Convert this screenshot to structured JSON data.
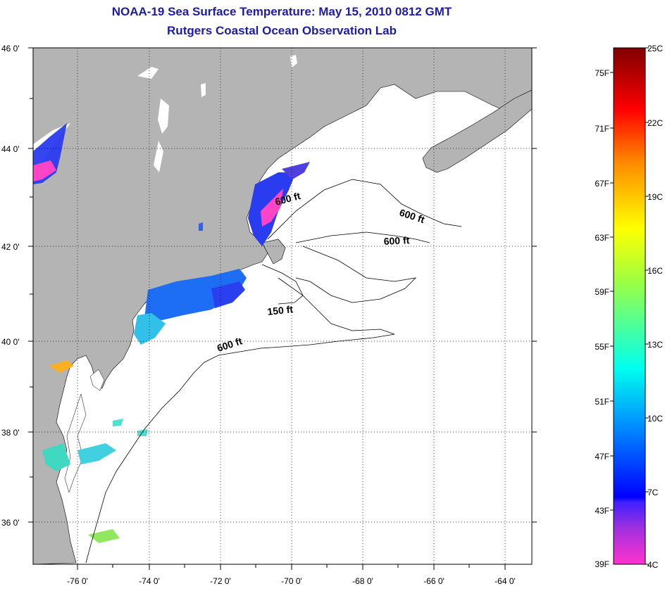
{
  "title": "NOAA-19 Sea Surface Temperature:  May 15, 2010 0812 GMT",
  "subtitle": "Rutgers Coastal Ocean Observation Lab",
  "map": {
    "lon_range": [
      -77,
      -63
    ],
    "lat_range": [
      35,
      46
    ],
    "lat_ticks": [
      "46 0'",
      "44 0'",
      "42 0'",
      "40 0'",
      "38 0'",
      "36 0'"
    ],
    "lon_ticks": [
      "-76 0'",
      "-74 0'",
      "-72 0'",
      "-70 0'",
      "-68 0'",
      "-66 0'",
      "-64 0'"
    ],
    "contour_labels": [
      "600 ft",
      "600 ft",
      "600 ft",
      "150 ft",
      "600 ft"
    ],
    "land_color": "#b4b4b4",
    "ocean_color": "#ffffff"
  },
  "colorbar": {
    "fahrenheit_labels": [
      "75F",
      "71F",
      "67F",
      "63F",
      "59F",
      "55F",
      "51F",
      "47F",
      "43F",
      "39F"
    ],
    "celsius_labels": [
      "25C",
      "22C",
      "19C",
      "16C",
      "13C",
      "10C",
      "7C",
      "4C"
    ],
    "range_f": [
      39,
      77
    ],
    "range_c": [
      4,
      25
    ]
  }
}
